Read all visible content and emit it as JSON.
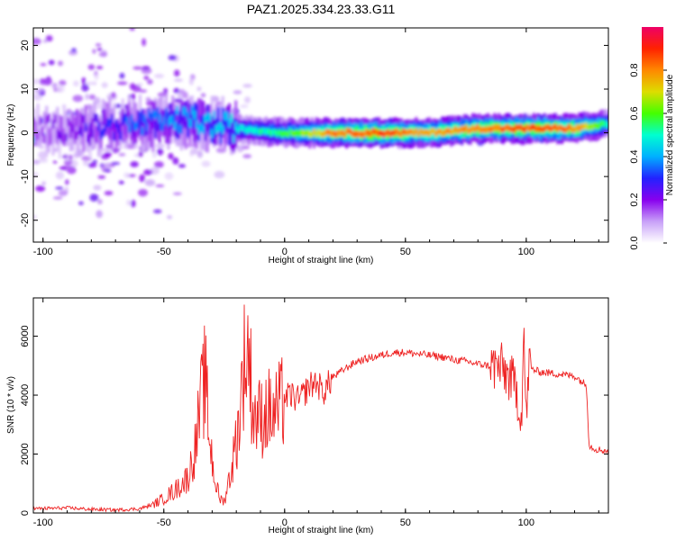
{
  "title": "PAZ1.2025.334.23.33.G11",
  "chart_data": [
    {
      "type": "heatmap",
      "title": "PAZ1.2025.334.23.33.G11",
      "xlabel": "Height of straight line (km)",
      "ylabel": "Frequency (Hz)",
      "xlim": [
        -104,
        134
      ],
      "ylim": [
        -25,
        24
      ],
      "xticks": [
        -100,
        -50,
        0,
        50,
        100
      ],
      "yticks": [
        -20,
        -10,
        0,
        10,
        20
      ],
      "colorbar": {
        "label": "Normalized spectral amplitude",
        "range": [
          0.0,
          1.0
        ],
        "ticks": [
          0.0,
          0.2,
          0.4,
          0.6,
          0.8
        ],
        "tick_labels": [
          "0.0",
          "0.2",
          "0.4",
          "0.6",
          "0.8"
        ],
        "colors": [
          "#ffffff",
          "#c8a0f8",
          "#8800ee",
          "#2222ff",
          "#00b0ff",
          "#00ffd0",
          "#44ff00",
          "#dddd00",
          "#ff8800",
          "#ff2200",
          "#ee0066"
        ]
      },
      "ridge": {
        "x": [
          -100,
          -80,
          -60,
          -40,
          -20,
          0,
          20,
          40,
          60,
          80,
          100,
          120,
          134
        ],
        "center_freq": [
          1,
          1,
          2,
          3,
          1,
          0,
          0,
          0,
          0,
          1,
          1,
          1,
          2
        ],
        "amplitude": [
          0.15,
          0.25,
          0.35,
          0.4,
          0.45,
          0.55,
          0.8,
          0.85,
          0.75,
          0.8,
          0.85,
          0.8,
          0.5
        ]
      }
    },
    {
      "type": "line",
      "xlabel": "Height of straight line (km)",
      "ylabel": "SNR (10 * v/v)",
      "xlim": [
        -104,
        134
      ],
      "ylim": [
        0,
        7300
      ],
      "xticks": [
        -100,
        -50,
        0,
        50,
        100
      ],
      "yticks": [
        0,
        2000,
        4000,
        6000
      ],
      "series": [
        {
          "name": "SNR",
          "color": "#ee2222",
          "x": [
            -104,
            -90,
            -80,
            -70,
            -60,
            -55,
            -50,
            -45,
            -40,
            -37,
            -35,
            -33,
            -31,
            -29,
            -27,
            -25,
            -22,
            -19,
            -17,
            -15,
            -13,
            -10,
            -7,
            -5,
            -2,
            0,
            3,
            6,
            10,
            13,
            16,
            20,
            25,
            30,
            35,
            40,
            45,
            50,
            55,
            60,
            65,
            70,
            75,
            80,
            85,
            90,
            93,
            96,
            98,
            99,
            100,
            101,
            102,
            105,
            110,
            115,
            120,
            124,
            125,
            126,
            128,
            130,
            134
          ],
          "values": [
            120,
            150,
            100,
            80,
            120,
            250,
            500,
            800,
            1200,
            2200,
            3500,
            4600,
            2500,
            1200,
            500,
            400,
            1500,
            3000,
            5000,
            5600,
            3400,
            3200,
            3500,
            3300,
            3600,
            3900,
            4000,
            3800,
            4300,
            4450,
            4100,
            4600,
            4900,
            5150,
            5250,
            5350,
            5450,
            5450,
            5400,
            5350,
            5300,
            5200,
            5150,
            5050,
            5000,
            4900,
            4600,
            4200,
            3200,
            6200,
            3000,
            5000,
            4900,
            4800,
            4750,
            4700,
            4650,
            4400,
            4300,
            2300,
            2200,
            2150,
            2100
          ]
        }
      ]
    }
  ]
}
